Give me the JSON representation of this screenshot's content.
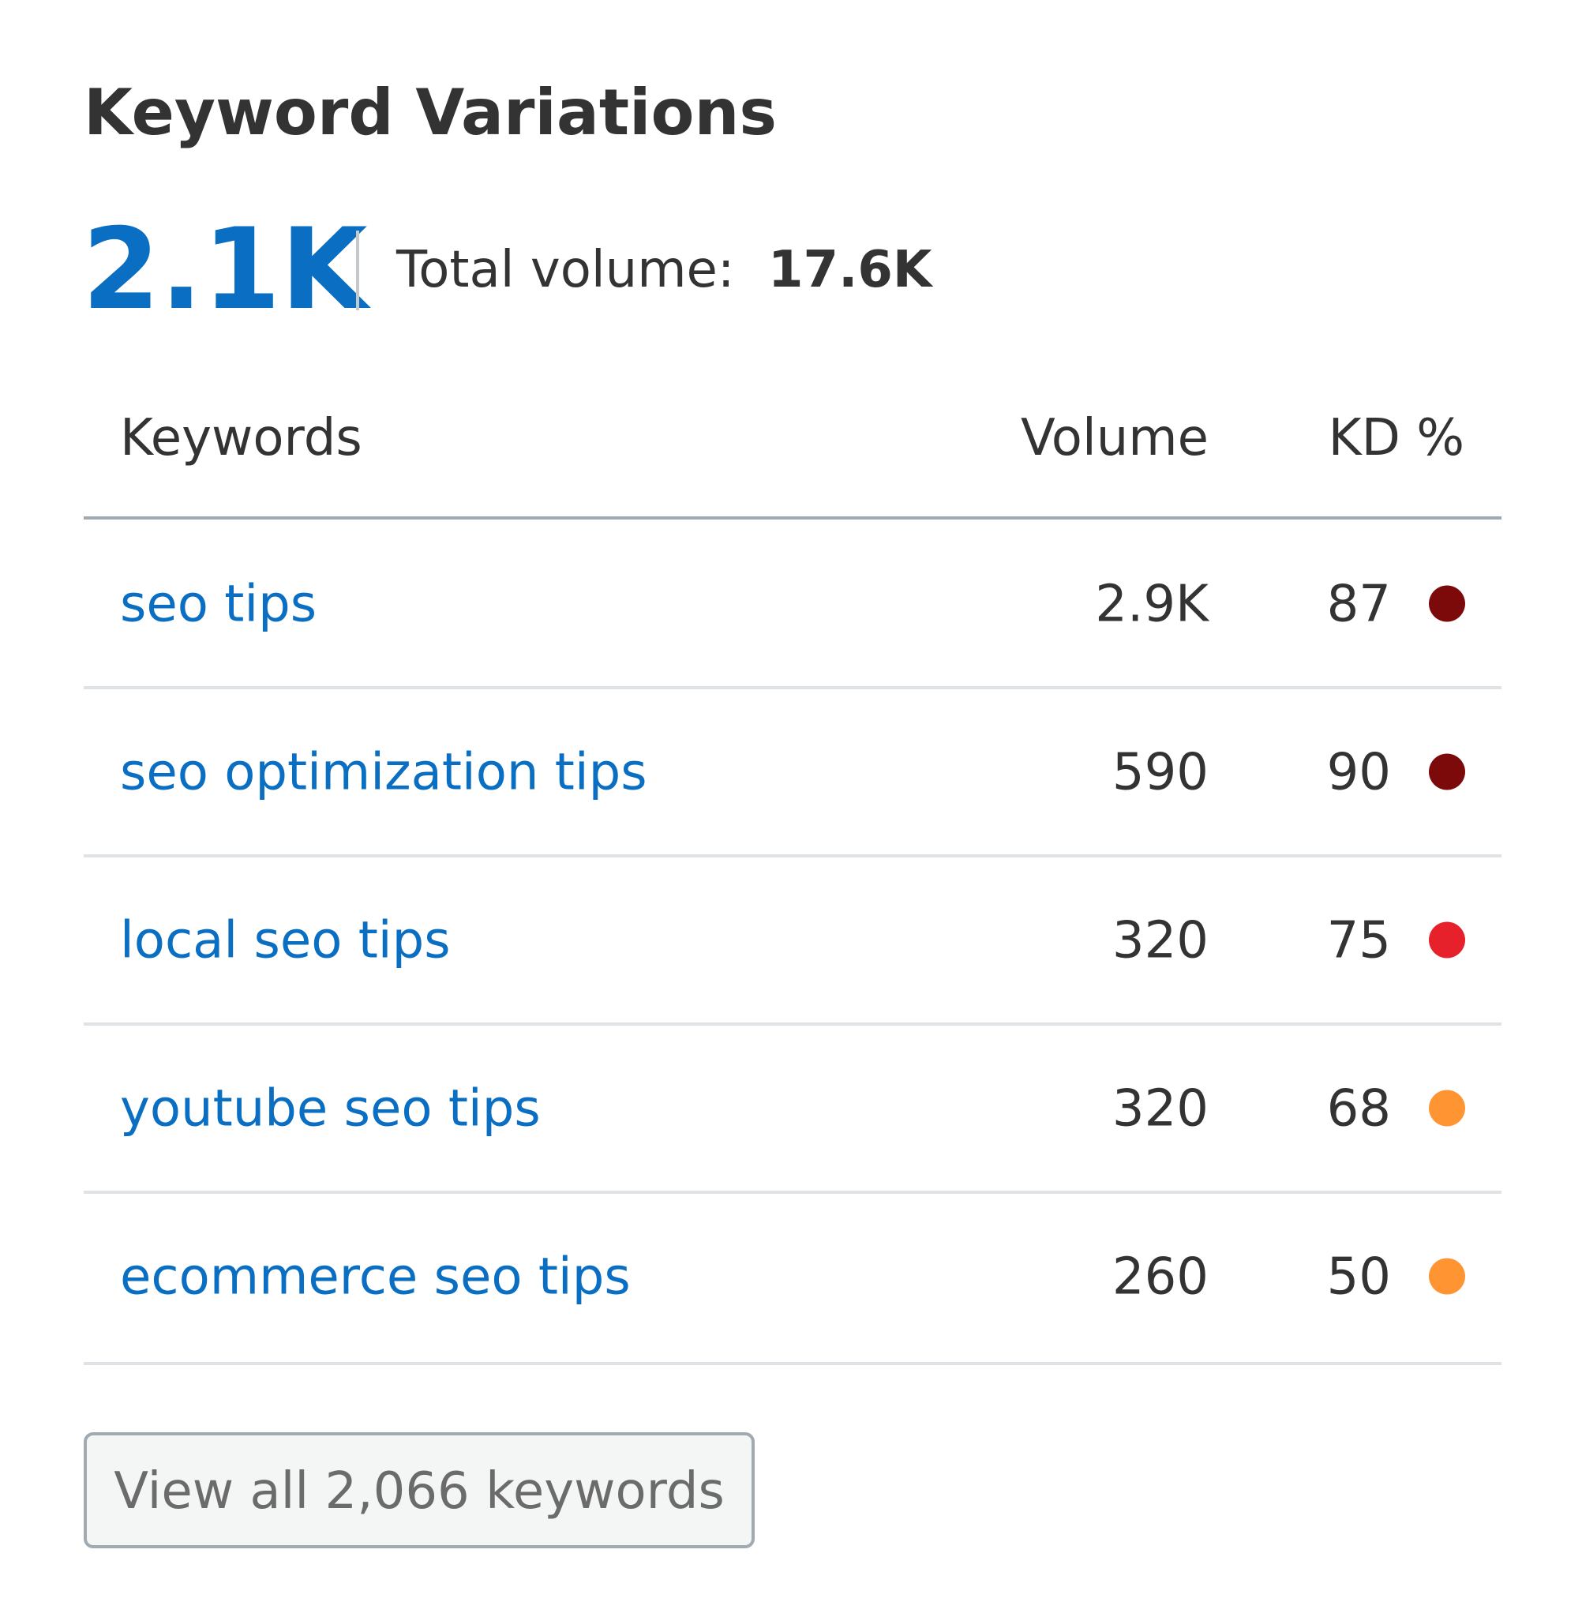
{
  "header": {
    "title": "Keyword Variations",
    "count": "2.1K",
    "total_label": "Total volume:",
    "total_value": "17.6K"
  },
  "table": {
    "columns": [
      "Keywords",
      "Volume",
      "KD %"
    ],
    "rows": [
      {
        "keyword": "seo tips",
        "volume": "2.9K",
        "kd": "87",
        "kd_color": "#7d0a0a"
      },
      {
        "keyword": "seo optimization tips",
        "volume": "590",
        "kd": "90",
        "kd_color": "#7d0a0a"
      },
      {
        "keyword": "local seo tips",
        "volume": "320",
        "kd": "75",
        "kd_color": "#e6212b"
      },
      {
        "keyword": "youtube seo tips",
        "volume": "320",
        "kd": "68",
        "kd_color": "#ff9433"
      },
      {
        "keyword": "ecommerce seo tips",
        "volume": "260",
        "kd": "50",
        "kd_color": "#ff9433"
      }
    ]
  },
  "button": {
    "label": "View all 2,066 keywords"
  }
}
